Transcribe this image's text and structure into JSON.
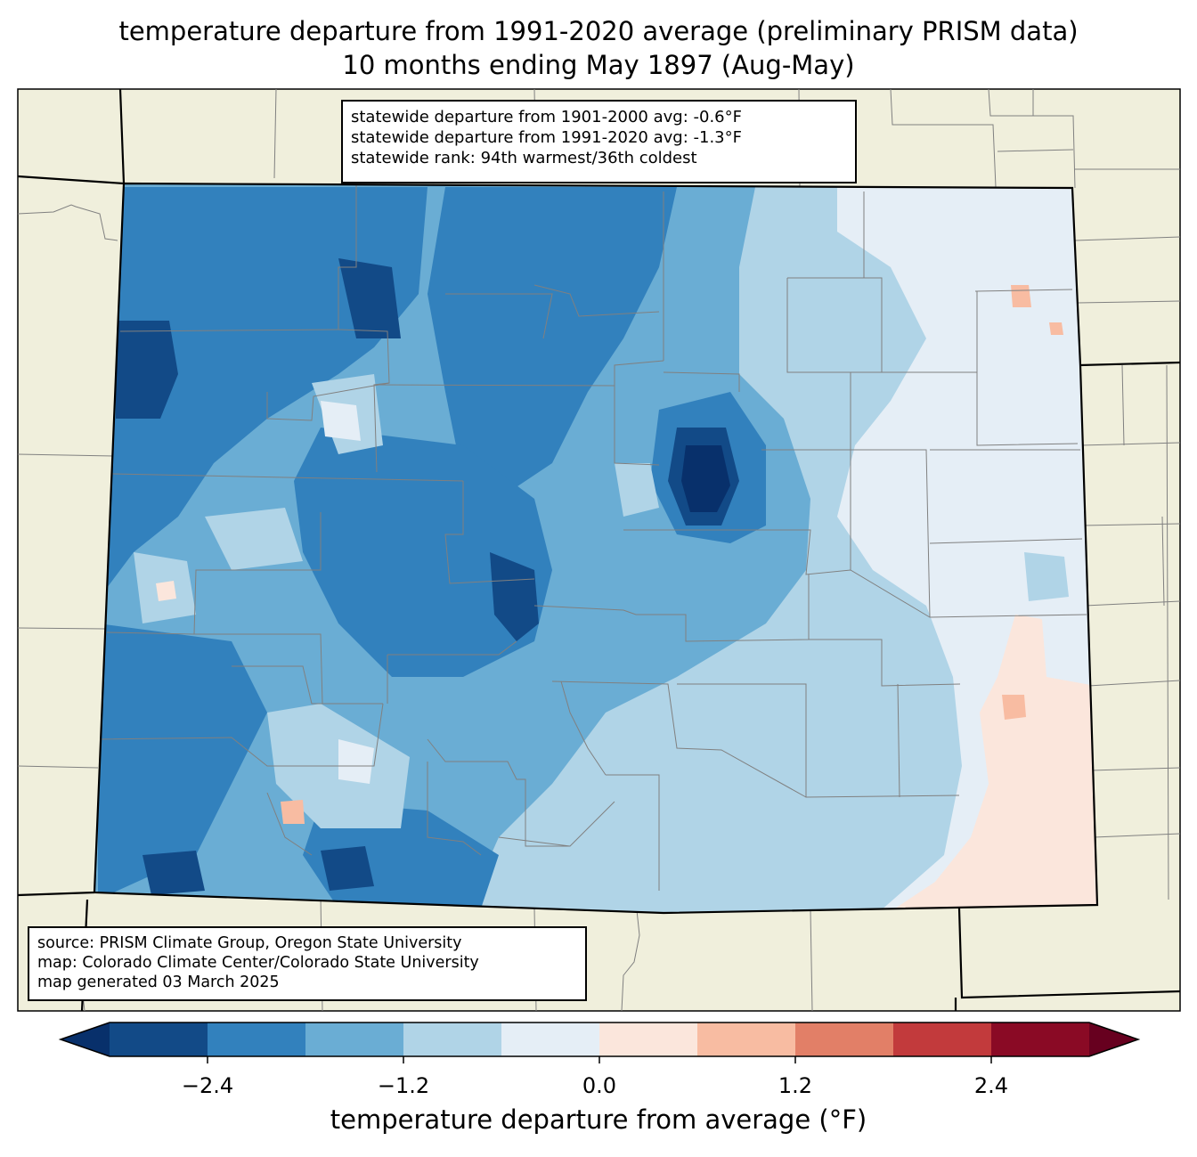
{
  "title": {
    "line1": "temperature departure from 1991-2020 average (preliminary PRISM data)",
    "line2": "10 months ending May 1897 (Aug-May)"
  },
  "stats": {
    "line1": "statewide departure from 1901-2000 avg: -0.6°F",
    "line2": "statewide departure from 1991-2020 avg: -1.3°F",
    "line3": "statewide rank: 94th warmest/36th coldest"
  },
  "source": {
    "line1": "source: PRISM Climate Group, Oregon State University",
    "line2": "map: Colorado Climate Center/Colorado State University",
    "line3": "map generated 03 March 2025"
  },
  "colorbar": {
    "label": "temperature departure from average (°F)",
    "ticks": [
      "−2.4",
      "−1.2",
      "0.0",
      "1.2",
      "2.4"
    ],
    "bins": [
      -3.0,
      -2.4,
      -1.8,
      -1.2,
      -0.6,
      0.0,
      0.6,
      1.2,
      1.8,
      2.4,
      3.0
    ],
    "colors": [
      "#08306b",
      "#124a87",
      "#3281bd",
      "#6aadd4",
      "#b0d4e7",
      "#e5eef6",
      "#fbe6dc",
      "#f8bca2",
      "#e27f67",
      "#c23a3c",
      "#8a0a25",
      "#67001f"
    ]
  },
  "colors": {
    "land_outside": "#f0efdc",
    "boundary": "#000000",
    "county_line": "#808080"
  }
}
